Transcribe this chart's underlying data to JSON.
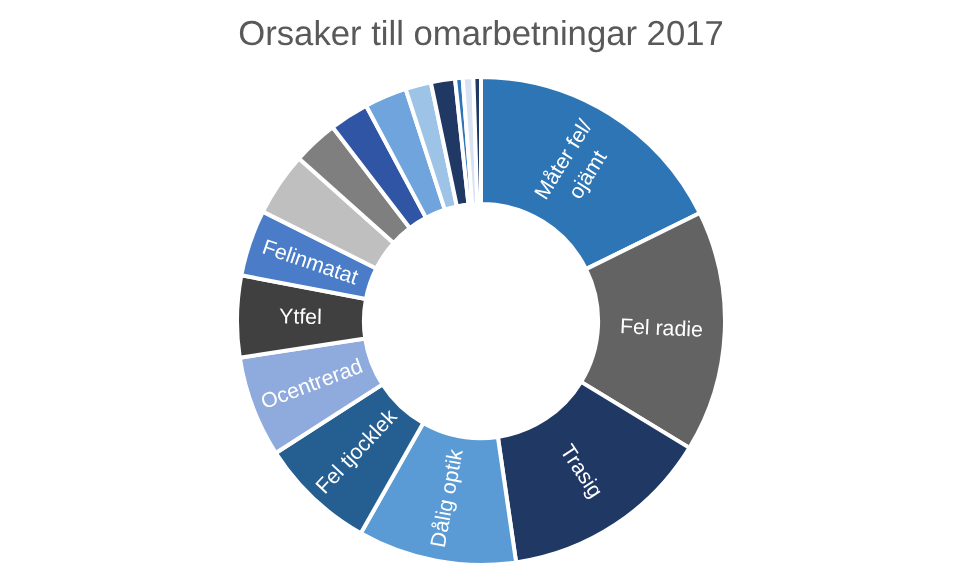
{
  "chart_data": {
    "type": "donut",
    "title": "Orsaker till omarbetningar 2017",
    "categories": [
      "Måter fel/ ojämt",
      "Fel radie",
      "Trasig",
      "Dålig optik",
      "Fel tjocklek",
      "Ocentrerad",
      "Ytfel",
      "Felinmatat",
      null,
      null,
      null,
      null,
      null,
      null,
      null,
      null,
      null
    ],
    "values": [
      17.7,
      16,
      14,
      10.5,
      7.7,
      6.7,
      5.4,
      4.4,
      4.2,
      3,
      2.6,
      2.8,
      1.7,
      1.6,
      0.5,
      0.7,
      0.5
    ],
    "colors": [
      "#2e75b6",
      "#636363",
      "#1f3864",
      "#5b9bd5",
      "#255e91",
      "#8faadc",
      "#404040",
      "#4a7cc7",
      "#bfbfbf",
      "#7f7f7f",
      "#2f55a4",
      "#6fa5dc",
      "#9dc3e6",
      "#1f3864",
      "#2e75b6",
      "#d9e2f3",
      "#203864"
    ],
    "legend": false
  }
}
